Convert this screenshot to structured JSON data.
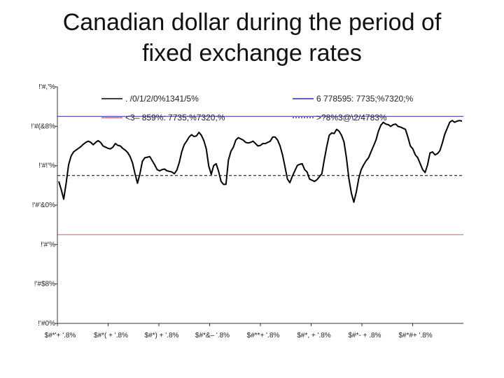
{
  "slide": {
    "title_line1": "Canadian dollar during the period of",
    "title_line2": "fixed exchange rates"
  },
  "chart_data": {
    "type": "line",
    "title": "Canadian dollar during the period of fixed exchange rates",
    "xlabel": "",
    "ylabel": "",
    "ylim": [
      0.7,
      1.1
    ],
    "grid": false,
    "legend_placement": "top",
    "y_ticks": [
      "!'#,'%",
      "!'#(&8%",
      "!'#!'%",
      "!'#'&0%",
      "!'#'%",
      "!'#$8%",
      "!'#0%"
    ],
    "x_ticks": [
      "$#*'+ '.8%",
      "$#*( + '.8%",
      "$#*) + '.8%",
      "$#*&– '.8%",
      "$#**+ '.8%",
      "$#*, + '.8%",
      "$#*- +    .8%",
      "$#*#+ '.8%"
    ],
    "legend": [
      {
        "label": ". /0/1/2/0%1341/5%",
        "color": "#000000",
        "style": "solid"
      },
      {
        "label": "6 778595: 7735;%7320;%",
        "color": "#2b2bb0",
        "style": "solid"
      },
      {
        "label": "<3– 859%: 7735;%7320;%",
        "color": "#e05a5a",
        "style": "solid"
      },
      {
        "label": ">?8%3@\\2/4783%",
        "color": "#000000",
        "style": "dotted"
      }
    ],
    "reference_lines": [
      {
        "value": 1.05,
        "color": "#2b2bb0",
        "style": "solid"
      },
      {
        "value": 0.95,
        "color": "#000000",
        "style": "dashed"
      },
      {
        "value": 0.85,
        "color": "#e05a5a",
        "style": "solid"
      }
    ],
    "series": [
      {
        "color": "#000000",
        "values": [
          0.94,
          0.926,
          0.91,
          0.937,
          0.968,
          0.983,
          0.99,
          0.993,
          0.996,
          0.999,
          1.003,
          1.006,
          1.008,
          1.006,
          1.002,
          1.006,
          1.009,
          1.006,
          1.0,
          0.998,
          0.996,
          0.995,
          0.998,
          1.004,
          1.001,
          1.0,
          0.996,
          0.993,
          0.989,
          0.982,
          0.971,
          0.953,
          0.937,
          0.953,
          0.974,
          0.98,
          0.981,
          0.982,
          0.975,
          0.968,
          0.96,
          0.958,
          0.96,
          0.961,
          0.958,
          0.957,
          0.956,
          0.953,
          0.959,
          0.972,
          0.99,
          1.002,
          1.008,
          1.015,
          1.019,
          1.016,
          1.017,
          1.023,
          1.018,
          1.009,
          0.995,
          0.966,
          0.952,
          0.967,
          0.97,
          0.957,
          0.94,
          0.935,
          0.935,
          0.976,
          0.991,
          0.998,
          1.01,
          1.014,
          1.012,
          1.01,
          1.006,
          1.005,
          1.006,
          1.008,
          1.004,
          1.0,
          1.001,
          1.004,
          1.004,
          1.006,
          1.008,
          1.015,
          1.015,
          1.01,
          1.0,
          0.985,
          0.965,
          0.944,
          0.938,
          0.949,
          0.958,
          0.967,
          0.969,
          0.97,
          0.96,
          0.956,
          0.944,
          0.942,
          0.94,
          0.943,
          0.948,
          0.953,
          0.977,
          0.999,
          1.018,
          1.022,
          1.021,
          1.028,
          1.025,
          1.018,
          1.007,
          0.98,
          0.945,
          0.92,
          0.905,
          0.922,
          0.945,
          0.96,
          0.968,
          0.975,
          0.98,
          0.99,
          1.0,
          1.01,
          1.025,
          1.035,
          1.04,
          1.037,
          1.036,
          1.033,
          1.036,
          1.037,
          1.033,
          1.032,
          1.03,
          1.028,
          1.015,
          1.0,
          0.995,
          0.985,
          0.98,
          0.97,
          0.96,
          0.955,
          0.968,
          0.988,
          0.99,
          0.985,
          0.987,
          0.992,
          1.005,
          1.02,
          1.03,
          1.04,
          1.043,
          1.04,
          1.042,
          1.043,
          1.042
        ]
      }
    ]
  }
}
